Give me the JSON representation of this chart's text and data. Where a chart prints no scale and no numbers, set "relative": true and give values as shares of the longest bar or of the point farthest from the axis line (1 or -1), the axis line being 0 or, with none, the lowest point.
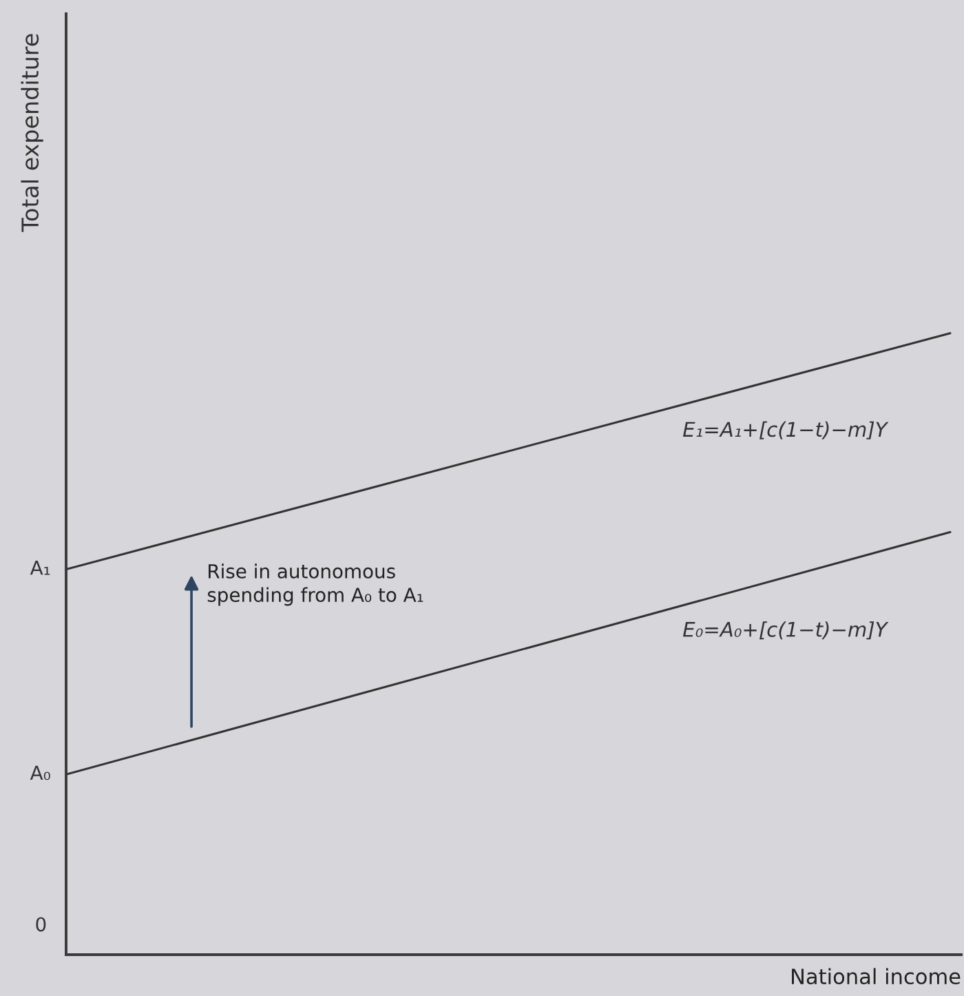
{
  "chart_data": {
    "type": "line",
    "relative": true,
    "xlabel": "National income",
    "categories": [
      null,
      null
    ],
    "series": [
      {
        "name": "E₁=A₁+[c(1−t)−m]Y",
        "color": "#333333",
        "values": [
          0.62,
          1.0
        ]
      },
      {
        "name": "E₀=A₀+[c(1−t)−m]Y",
        "color": "#333333",
        "values": [
          0.29,
          0.68
        ]
      }
    ],
    "annotations": [
      "Total expenditure",
      "A₁",
      "A₀",
      "0",
      "Rise in autonomous\nspending from A₀ to A₁"
    ]
  }
}
